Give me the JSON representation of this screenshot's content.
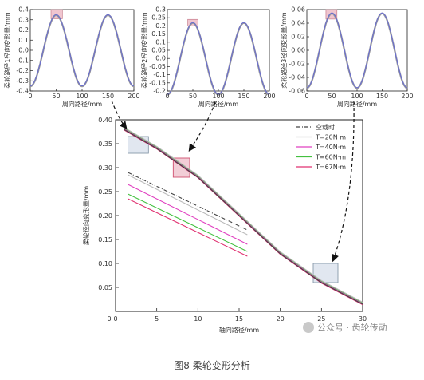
{
  "caption": "图8 柔轮变形分析",
  "watermark": "公众号 · 齿轮传动",
  "colors": {
    "frame": "#222222",
    "curve_blue": "#6b6fcf",
    "curve_gray": "#9a9a9a",
    "highlight_fill": "#c9d3e3",
    "highlight_pink": "#e8a6b6",
    "s0": "#444444",
    "s20": "#bbbbbb",
    "s40": "#e040c0",
    "s60": "#44c040",
    "s67": "#e03070"
  },
  "chart_data": [
    {
      "type": "line",
      "ylabel": "柔轮路径1径向变形量/mm",
      "xlabel": "周向路径/mm",
      "xlim": [
        0,
        200
      ],
      "ylim": [
        -0.4,
        0.4
      ],
      "xticks": [
        "0",
        "50",
        "100",
        "150",
        "200"
      ],
      "yticks": [
        "-0.4",
        "-0.3",
        "-0.2",
        "-0.1",
        "0.0",
        "0.1",
        "0.2",
        "0.3",
        "0.4"
      ],
      "curve": {
        "amplitude": 0.35,
        "period": 100,
        "peak_x": 50
      },
      "highlight": {
        "x": [
          40,
          62
        ],
        "y": [
          0.31,
          0.4
        ]
      }
    },
    {
      "type": "line",
      "ylabel": "柔轮路径2径向变形量/mm",
      "xlabel": "周向路径/mm",
      "xlim": [
        0,
        200
      ],
      "ylim": [
        -0.2,
        0.3
      ],
      "xticks": [
        "0",
        "50",
        "100",
        "150",
        "200"
      ],
      "yticks": [
        "-0.2",
        "-0.15",
        "-0.1",
        "-0.05",
        "0.0",
        "0.05",
        "0.1",
        "0.15",
        "0.2",
        "0.25",
        "0.3"
      ],
      "curve": {
        "amplitude": 0.22,
        "period": 100,
        "peak_x": 50
      },
      "highlight": {
        "x": [
          40,
          60
        ],
        "y": [
          0.2,
          0.24
        ]
      }
    },
    {
      "type": "line",
      "ylabel": "柔轮路径3径向变形量/mm",
      "xlabel": "周向路径/mm",
      "xlim": [
        0,
        200
      ],
      "ylim": [
        -0.06,
        0.06
      ],
      "xticks": [
        "0",
        "50",
        "100",
        "150",
        "200"
      ],
      "yticks": [
        "-0.06",
        "-0.04",
        "-0.02",
        "0.00",
        "0.02",
        "0.04",
        "0.06"
      ],
      "curve": {
        "amplitude": 0.055,
        "period": 100,
        "peak_x": 50
      },
      "highlight": {
        "x": [
          38,
          60
        ],
        "y": [
          0.046,
          0.06
        ]
      }
    },
    {
      "type": "line",
      "ylabel": "柔轮径向变形量/mm",
      "xlabel": "轴向路径/mm",
      "xlim": [
        0,
        30
      ],
      "ylim": [
        0,
        0.4
      ],
      "xticks": [
        "0",
        "5",
        "10",
        "15",
        "20",
        "25",
        "30"
      ],
      "yticks": [
        "0.05",
        "0.10",
        "0.15",
        "0.20",
        "0.25",
        "0.30",
        "0.35",
        "0.40"
      ],
      "series": [
        {
          "name": "空载时",
          "color": "s0"
        },
        {
          "name": "T=20N·m",
          "color": "s20"
        },
        {
          "name": "T=40N·m",
          "color": "s40"
        },
        {
          "name": "T=60N·m",
          "color": "s60"
        },
        {
          "name": "T=67N·m",
          "color": "s67"
        }
      ],
      "main_curve": {
        "x": [
          1,
          5,
          10,
          15,
          20,
          25,
          30
        ],
        "y": [
          0.38,
          0.34,
          0.28,
          0.2,
          0.12,
          0.06,
          0.015
        ]
      },
      "offset_lines": [
        {
          "color": "s0",
          "x": [
            1.5,
            16
          ],
          "y": [
            0.29,
            0.17
          ]
        },
        {
          "color": "s20",
          "x": [
            1.5,
            16
          ],
          "y": [
            0.285,
            0.16
          ]
        },
        {
          "color": "s40",
          "x": [
            1.5,
            16
          ],
          "y": [
            0.265,
            0.14
          ]
        },
        {
          "color": "s60",
          "x": [
            1.5,
            16
          ],
          "y": [
            0.245,
            0.125
          ]
        },
        {
          "color": "s67",
          "x": [
            1.5,
            16
          ],
          "y": [
            0.235,
            0.115
          ]
        }
      ],
      "highlights": [
        {
          "x": [
            1.5,
            4
          ],
          "y": [
            0.33,
            0.365
          ]
        },
        {
          "x": [
            7,
            9
          ],
          "y": [
            0.28,
            0.32
          ]
        },
        {
          "x": [
            24,
            27
          ],
          "y": [
            0.06,
            0.1
          ]
        }
      ]
    }
  ]
}
